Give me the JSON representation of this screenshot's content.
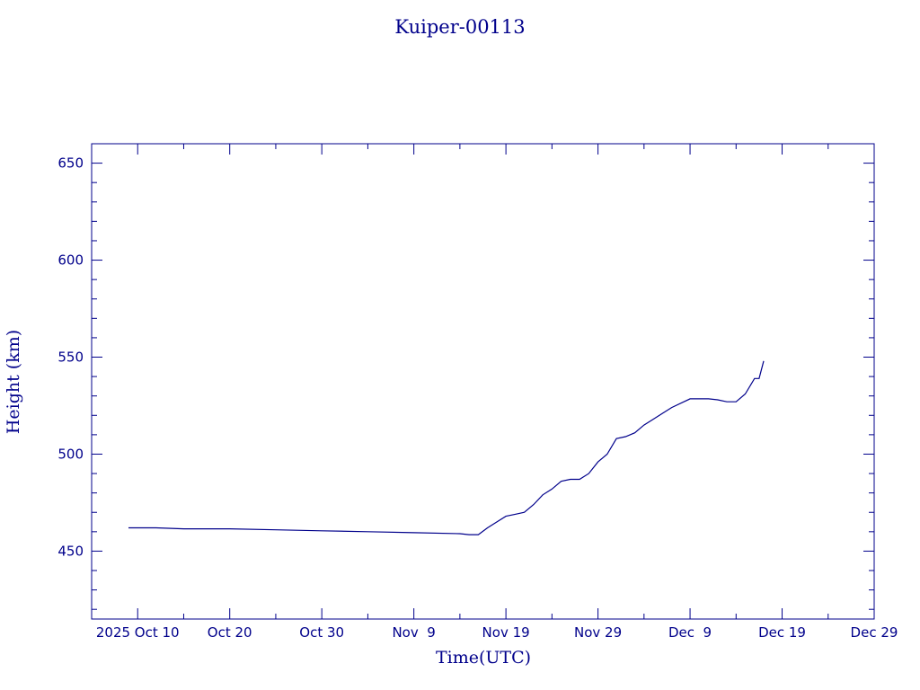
{
  "chart_data": {
    "type": "line",
    "title": "Kuiper-00113",
    "xlabel": "Time(UTC)",
    "ylabel": "Height (km)",
    "x_ticks": [
      "2025 Oct 10",
      "Oct 20",
      "Oct 30",
      "Nov  9",
      "Nov 19",
      "Nov 29",
      "Dec  9",
      "Dec 19",
      "Dec 29"
    ],
    "y_ticks": [
      450,
      500,
      550,
      600,
      650
    ],
    "xlim": [
      "2025-10-05",
      "2025-12-29"
    ],
    "ylim": [
      415,
      660
    ],
    "grid": false,
    "color": "#00008b",
    "series": [
      {
        "x": [
          "2025-10-09",
          "2025-10-12",
          "2025-10-15",
          "2025-10-20",
          "2025-10-25",
          "2025-10-30",
          "2025-11-04",
          "2025-11-09",
          "2025-11-14",
          "2025-11-15",
          "2025-11-16",
          "2025-11-17",
          "2025-11-18",
          "2025-11-19",
          "2025-11-20",
          "2025-11-21",
          "2025-11-22",
          "2025-11-23",
          "2025-11-24",
          "2025-11-25",
          "2025-11-26",
          "2025-11-27",
          "2025-11-28",
          "2025-11-29",
          "2025-11-30",
          "2025-12-01",
          "2025-12-02",
          "2025-12-03",
          "2025-12-04",
          "2025-12-05",
          "2025-12-06",
          "2025-12-07",
          "2025-12-09",
          "2025-12-11",
          "2025-12-12",
          "2025-12-13",
          "2025-12-14",
          "2025-12-15",
          "2025-12-16",
          "2025-12-16 12:00",
          "2025-12-17"
        ],
        "y": [
          462,
          462,
          461.5,
          461.5,
          461,
          460.5,
          460,
          459.5,
          459,
          458.5,
          458.5,
          462,
          465,
          468,
          469,
          470,
          474,
          479,
          482,
          486,
          487,
          487,
          490,
          496,
          500,
          508,
          509,
          511,
          515,
          518,
          521,
          524,
          528.5,
          528.5,
          528,
          527,
          527,
          531,
          539,
          539,
          548
        ]
      }
    ]
  }
}
